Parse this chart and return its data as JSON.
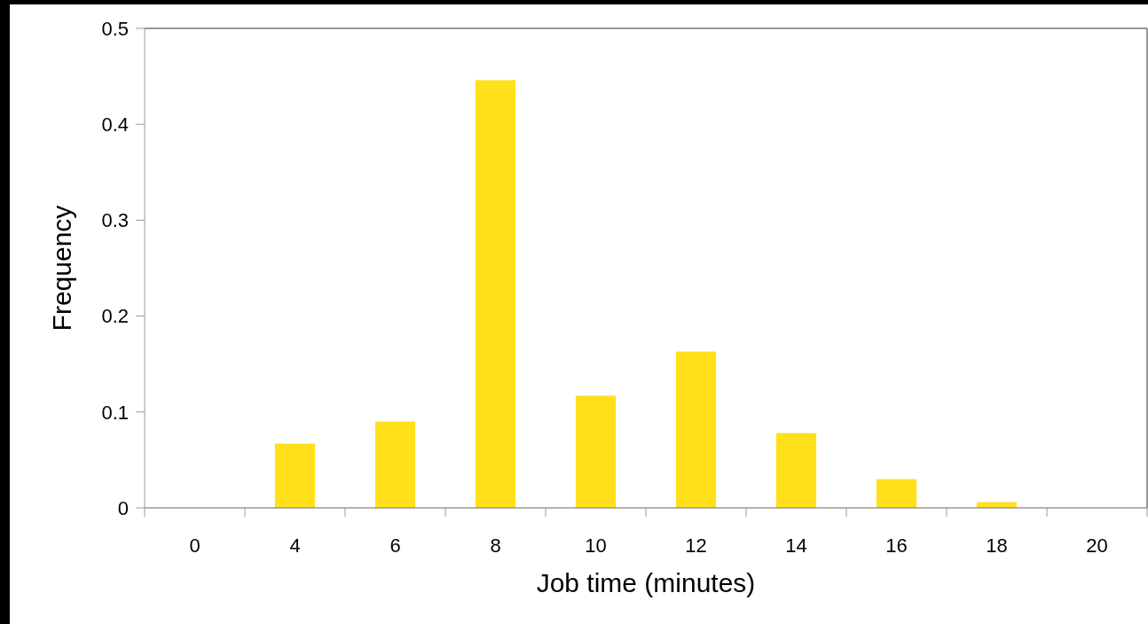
{
  "chart_data": {
    "type": "bar",
    "xlabel": "Job time (minutes)",
    "ylabel": "Frequency",
    "categories": [
      "0",
      "4",
      "6",
      "8",
      "10",
      "12",
      "14",
      "16",
      "18",
      "20"
    ],
    "values": [
      0,
      0.067,
      0.09,
      0.446,
      0.117,
      0.163,
      0.078,
      0.03,
      0.006,
      0
    ],
    "color": "#ffe01b",
    "ylim": [
      0,
      0.5
    ],
    "yticks": [
      0,
      0.1,
      0.2,
      0.3,
      0.4,
      0.5
    ],
    "grid": false
  }
}
